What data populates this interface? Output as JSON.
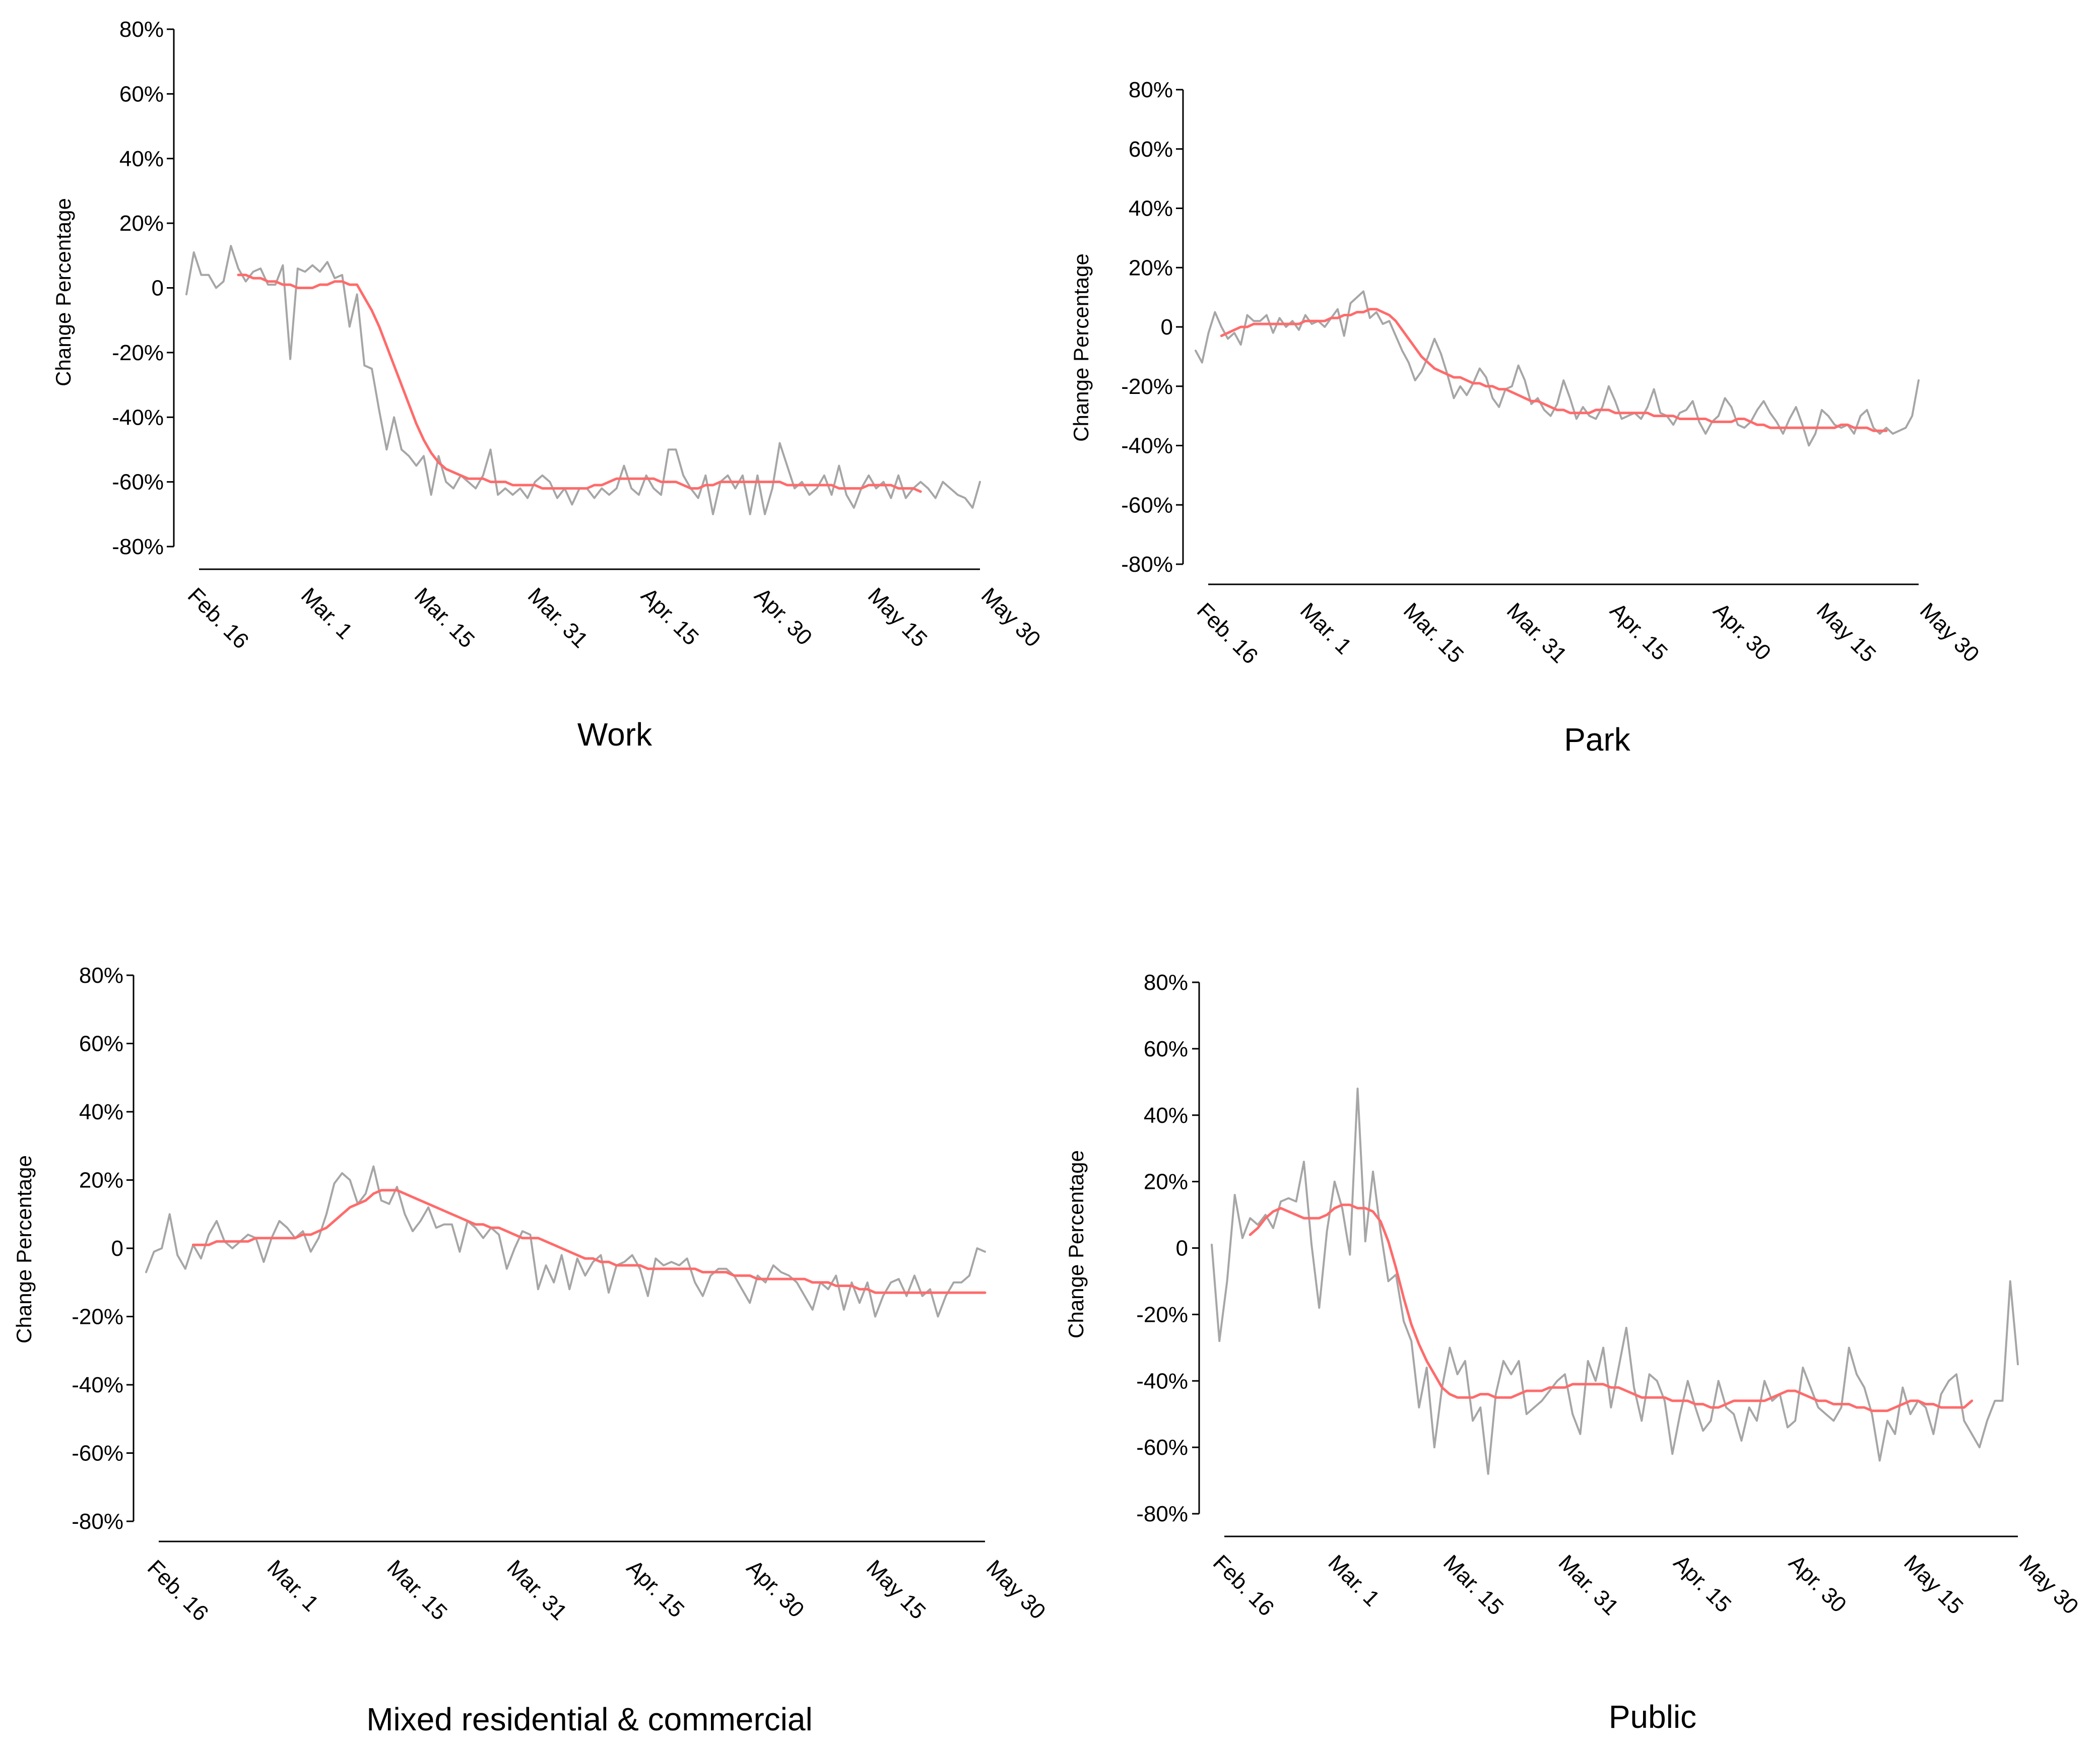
{
  "chart_data": [
    {
      "type": "line",
      "title": "Work",
      "ylabel": "Change Percentage",
      "xlabel": "",
      "ylim": [
        -80,
        80
      ],
      "yticks": [
        80,
        60,
        40,
        20,
        0,
        -20,
        -40,
        -60,
        -80
      ],
      "ytick_labels": [
        "80%",
        "60%",
        "40%",
        "20%",
        "0",
        "-20%",
        "-40%",
        "-60%",
        "-80%"
      ],
      "xticks": [
        "Feb. 16",
        "Mar. 1",
        "Mar. 15",
        "Mar. 31",
        "Apr. 15",
        "Apr. 30",
        "May 15",
        "May 30"
      ],
      "series": [
        {
          "role": "daily",
          "color": "#a6a6a6",
          "values": [
            -2,
            11,
            4,
            4,
            0,
            2,
            13,
            6,
            2,
            5,
            6,
            1,
            1,
            7,
            -22,
            6,
            5,
            7,
            5,
            8,
            3,
            4,
            -12,
            -2,
            -24,
            -25,
            -38,
            -50,
            -40,
            -50,
            -52,
            -55,
            -52,
            -64,
            -52,
            -60,
            -62,
            -58,
            -60,
            -62,
            -58,
            -50,
            -64,
            -62,
            -64,
            -62,
            -65,
            -60,
            -58,
            -60,
            -65,
            -62,
            -67,
            -62,
            -62,
            -65,
            -62,
            -64,
            -62,
            -55,
            -62,
            -64,
            -58,
            -62,
            -64,
            -50,
            -50,
            -58,
            -62,
            -65,
            -58,
            -70,
            -60,
            -58,
            -62,
            -58,
            -70,
            -58,
            -70,
            -62,
            -48,
            -55,
            -62,
            -60,
            -64,
            -62,
            -58,
            -64,
            -55,
            -64,
            -68,
            -62,
            -58,
            -62,
            -60,
            -65,
            -58,
            -65,
            -62,
            -60,
            -62,
            -65,
            -60,
            -62,
            -64,
            -65,
            -68,
            -60
          ]
        },
        {
          "role": "moving-average",
          "color": "#ff6b6b",
          "start": 7,
          "values": [
            4,
            4,
            3,
            3,
            2,
            2,
            1,
            1,
            0,
            0,
            0,
            1,
            1,
            2,
            2,
            1,
            1,
            -3,
            -7,
            -12,
            -18,
            -24,
            -30,
            -36,
            -42,
            -47,
            -51,
            -54,
            -56,
            -57,
            -58,
            -59,
            -59,
            -59,
            -60,
            -60,
            -60,
            -61,
            -61,
            -61,
            -61,
            -62,
            -62,
            -62,
            -62,
            -62,
            -62,
            -62,
            -61,
            -61,
            -60,
            -59,
            -59,
            -59,
            -59,
            -59,
            -59,
            -60,
            -60,
            -60,
            -61,
            -62,
            -62,
            -61,
            -61,
            -60,
            -60,
            -60,
            -60,
            -60,
            -60,
            -60,
            -60,
            -60,
            -61,
            -61,
            -61,
            -61,
            -61,
            -61,
            -61,
            -62,
            -62,
            -62,
            -62,
            -61,
            -61,
            -61,
            -61,
            -62,
            -62,
            -62,
            -63
          ]
        }
      ]
    },
    {
      "type": "line",
      "title": "Park",
      "ylabel": "Change Percentage",
      "xlabel": "",
      "ylim": [
        -80,
        80
      ],
      "yticks": [
        80,
        60,
        40,
        20,
        0,
        -20,
        -40,
        -60,
        -80
      ],
      "ytick_labels": [
        "80%",
        "60%",
        "40%",
        "20%",
        "0",
        "-20%",
        "-40%",
        "-60%",
        "-80%"
      ],
      "xticks": [
        "Feb. 16",
        "Mar. 1",
        "Mar. 15",
        "Mar. 31",
        "Apr. 15",
        "Apr. 30",
        "May 15",
        "May 30"
      ],
      "series": [
        {
          "role": "daily",
          "color": "#a6a6a6",
          "values": [
            -8,
            -12,
            -2,
            5,
            0,
            -4,
            -2,
            -6,
            4,
            2,
            2,
            4,
            -2,
            3,
            0,
            2,
            -1,
            4,
            1,
            2,
            0,
            3,
            6,
            -3,
            8,
            10,
            12,
            3,
            5,
            1,
            2,
            -3,
            -8,
            -12,
            -18,
            -15,
            -10,
            -4,
            -9,
            -16,
            -24,
            -20,
            -23,
            -19,
            -14,
            -17,
            -24,
            -27,
            -21,
            -20,
            -13,
            -18,
            -26,
            -24,
            -28,
            -30,
            -26,
            -18,
            -24,
            -31,
            -27,
            -30,
            -31,
            -27,
            -20,
            -25,
            -31,
            -30,
            -29,
            -31,
            -27,
            -21,
            -29,
            -30,
            -33,
            -29,
            -28,
            -25,
            -32,
            -36,
            -32,
            -30,
            -24,
            -27,
            -33,
            -34,
            -32,
            -28,
            -25,
            -29,
            -32,
            -36,
            -31,
            -27,
            -33,
            -40,
            -36,
            -28,
            -30,
            -33,
            -34,
            -33,
            -36,
            -30,
            -28,
            -34,
            -36,
            -34,
            -36,
            -35,
            -34,
            -30,
            -18
          ]
        },
        {
          "role": "moving-average",
          "color": "#ff6b6b",
          "start": 4,
          "values": [
            -3,
            -2,
            -1,
            0,
            0,
            1,
            1,
            1,
            1,
            1,
            1,
            1,
            1,
            2,
            2,
            2,
            2,
            3,
            3,
            4,
            4,
            5,
            5,
            6,
            6,
            5,
            4,
            2,
            -1,
            -4,
            -7,
            -10,
            -12,
            -14,
            -15,
            -16,
            -17,
            -17,
            -18,
            -19,
            -19,
            -20,
            -20,
            -21,
            -21,
            -22,
            -23,
            -24,
            -25,
            -25,
            -26,
            -27,
            -28,
            -28,
            -29,
            -29,
            -29,
            -29,
            -28,
            -28,
            -28,
            -29,
            -29,
            -29,
            -29,
            -29,
            -29,
            -30,
            -30,
            -30,
            -30,
            -31,
            -31,
            -31,
            -31,
            -31,
            -32,
            -32,
            -32,
            -32,
            -31,
            -31,
            -32,
            -33,
            -33,
            -34,
            -34,
            -34,
            -34,
            -34,
            -34,
            -34,
            -34,
            -34,
            -34,
            -34,
            -33,
            -33,
            -34,
            -34,
            -34,
            -35,
            -35,
            -35
          ]
        }
      ]
    },
    {
      "type": "line",
      "title": "Mixed residential & commercial",
      "ylabel": "Change Percentage",
      "xlabel": "",
      "ylim": [
        -80,
        80
      ],
      "yticks": [
        80,
        60,
        40,
        20,
        0,
        -20,
        -40,
        -60,
        -80
      ],
      "ytick_labels": [
        "80%",
        "60%",
        "40%",
        "20%",
        "0",
        "-20%",
        "-40%",
        "-60%",
        "-80%"
      ],
      "xticks": [
        "Feb. 16",
        "Mar. 1",
        "Mar. 15",
        "Mar. 31",
        "Apr. 15",
        "Apr. 30",
        "May 15",
        "May 30"
      ],
      "series": [
        {
          "role": "daily",
          "color": "#a6a6a6",
          "values": [
            -7,
            -1,
            0,
            10,
            -2,
            -6,
            1,
            -3,
            4,
            8,
            2,
            0,
            2,
            4,
            3,
            -4,
            3,
            8,
            6,
            3,
            5,
            -1,
            3,
            10,
            19,
            22,
            20,
            13,
            16,
            24,
            14,
            13,
            18,
            10,
            5,
            8,
            12,
            6,
            7,
            7,
            -1,
            8,
            6,
            3,
            6,
            4,
            -6,
            0,
            5,
            4,
            -12,
            -5,
            -10,
            -2,
            -12,
            -3,
            -8,
            -4,
            -2,
            -13,
            -5,
            -4,
            -2,
            -6,
            -14,
            -3,
            -5,
            -4,
            -5,
            -3,
            -10,
            -14,
            -8,
            -6,
            -6,
            -8,
            -12,
            -16,
            -8,
            -10,
            -5,
            -7,
            -8,
            -10,
            -14,
            -18,
            -10,
            -12,
            -8,
            -18,
            -10,
            -16,
            -10,
            -20,
            -14,
            -10,
            -9,
            -14,
            -8,
            -14,
            -12,
            -20,
            -14,
            -10,
            -10,
            -8,
            0,
            -1
          ]
        },
        {
          "role": "moving-average",
          "color": "#ff6b6b",
          "start": 6,
          "values": [
            1,
            1,
            1,
            2,
            2,
            2,
            2,
            2,
            3,
            3,
            3,
            3,
            3,
            3,
            4,
            4,
            5,
            6,
            8,
            10,
            12,
            13,
            14,
            16,
            17,
            17,
            17,
            16,
            15,
            14,
            13,
            12,
            11,
            10,
            9,
            8,
            7,
            7,
            6,
            6,
            5,
            4,
            3,
            3,
            3,
            2,
            1,
            0,
            -1,
            -2,
            -3,
            -3,
            -4,
            -4,
            -5,
            -5,
            -5,
            -5,
            -6,
            -6,
            -6,
            -6,
            -6,
            -6,
            -6,
            -7,
            -7,
            -7,
            -7,
            -8,
            -8,
            -8,
            -9,
            -9,
            -9,
            -9,
            -9,
            -9,
            -9,
            -10,
            -10,
            -10,
            -11,
            -11,
            -11,
            -12,
            -12,
            -13,
            -13,
            -13,
            -13,
            -13,
            -13,
            -13,
            -13,
            -13,
            -13,
            -13,
            -13,
            -13,
            -13,
            -13
          ]
        }
      ]
    },
    {
      "type": "line",
      "title": "Public",
      "ylabel": "Change Percentage",
      "xlabel": "",
      "ylim": [
        -80,
        80
      ],
      "yticks": [
        80,
        60,
        40,
        20,
        0,
        -20,
        -40,
        -60,
        -80
      ],
      "ytick_labels": [
        "80%",
        "60%",
        "40%",
        "20%",
        "0",
        "-20%",
        "-40%",
        "-60%",
        "-80%"
      ],
      "xticks": [
        "Feb. 16",
        "Mar. 1",
        "Mar. 15",
        "Mar. 31",
        "Apr. 15",
        "Apr. 30",
        "May 15",
        "May 30"
      ],
      "series": [
        {
          "role": "daily",
          "color": "#a6a6a6",
          "values": [
            1,
            -28,
            -10,
            16,
            3,
            9,
            7,
            10,
            6,
            14,
            15,
            14,
            26,
            1,
            -18,
            5,
            20,
            12,
            -2,
            48,
            2,
            23,
            5,
            -10,
            -8,
            -22,
            -28,
            -48,
            -36,
            -60,
            -42,
            -30,
            -38,
            -34,
            -52,
            -48,
            -68,
            -44,
            -34,
            -38,
            -34,
            -50,
            -48,
            -46,
            -43,
            -40,
            -38,
            -50,
            -56,
            -34,
            -40,
            -30,
            -48,
            -36,
            -24,
            -42,
            -52,
            -38,
            -40,
            -46,
            -62,
            -50,
            -40,
            -48,
            -55,
            -52,
            -40,
            -48,
            -50,
            -58,
            -48,
            -52,
            -40,
            -46,
            -44,
            -54,
            -52,
            -36,
            -42,
            -48,
            -50,
            -52,
            -48,
            -30,
            -38,
            -42,
            -50,
            -64,
            -52,
            -56,
            -42,
            -50,
            -46,
            -48,
            -56,
            -44,
            -40,
            -38,
            -52,
            -56,
            -60,
            -52,
            -46,
            -46,
            -10,
            -35
          ]
        },
        {
          "role": "moving-average",
          "color": "#ff6b6b",
          "start": 5,
          "values": [
            4,
            6,
            9,
            11,
            12,
            11,
            10,
            9,
            9,
            9,
            10,
            12,
            13,
            13,
            12,
            12,
            11,
            8,
            2,
            -6,
            -15,
            -23,
            -29,
            -34,
            -38,
            -42,
            -44,
            -45,
            -45,
            -45,
            -44,
            -44,
            -45,
            -45,
            -45,
            -44,
            -43,
            -43,
            -43,
            -42,
            -42,
            -42,
            -41,
            -41,
            -41,
            -41,
            -41,
            -42,
            -42,
            -43,
            -44,
            -45,
            -45,
            -45,
            -45,
            -46,
            -46,
            -46,
            -47,
            -47,
            -48,
            -48,
            -47,
            -46,
            -46,
            -46,
            -46,
            -46,
            -45,
            -44,
            -43,
            -43,
            -44,
            -45,
            -46,
            -46,
            -47,
            -47,
            -47,
            -48,
            -48,
            -49,
            -49,
            -49,
            -48,
            -47,
            -46,
            -46,
            -47,
            -47,
            -48,
            -48,
            -48,
            -48,
            -46
          ]
        }
      ]
    }
  ]
}
